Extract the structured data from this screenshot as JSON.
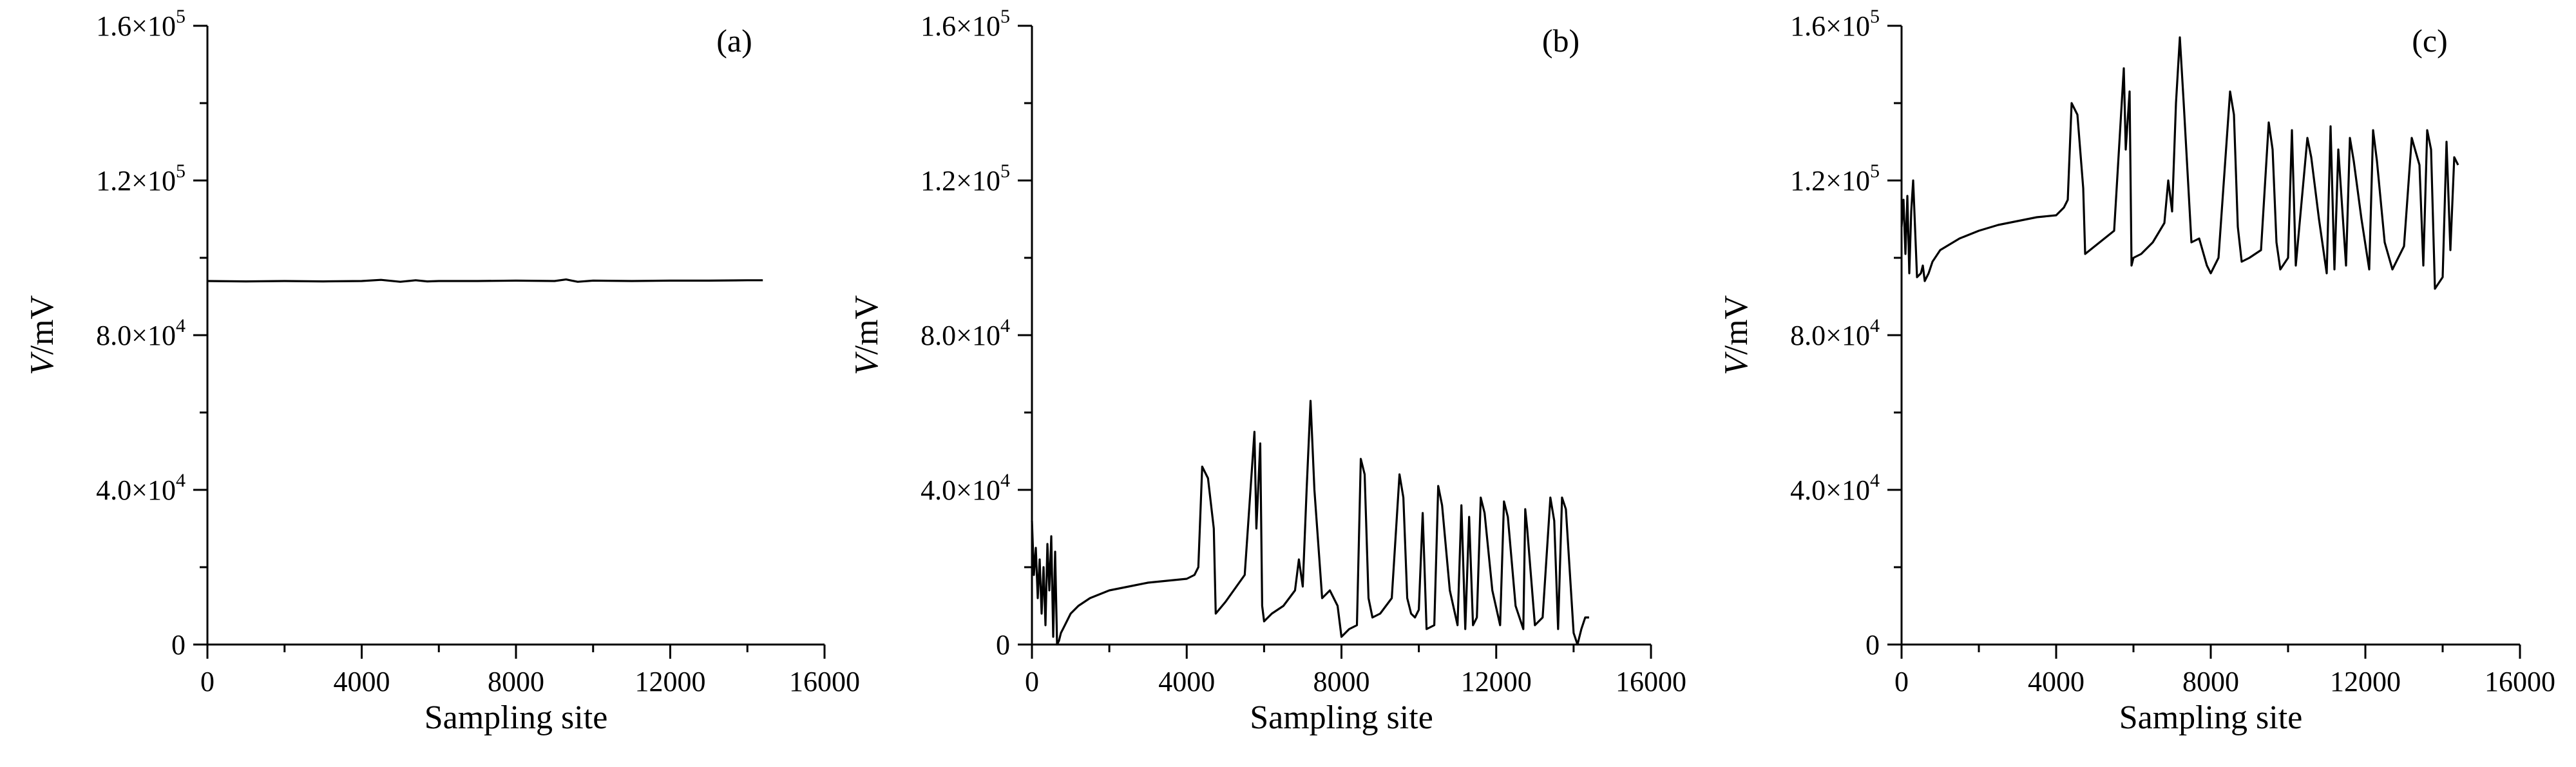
{
  "chart_data": [
    {
      "type": "line",
      "label": "(a)",
      "xlabel": "Sampling site",
      "ylabel_var": "V",
      "ylabel_unit": "/mV",
      "xlim": [
        0,
        16000
      ],
      "ylim": [
        0,
        160000
      ],
      "xticks": [
        0,
        4000,
        8000,
        12000,
        16000
      ],
      "xtick_labels": [
        "0",
        "4000",
        "8000",
        "12000",
        "16000"
      ],
      "yticks": [
        0,
        40000,
        80000,
        120000,
        160000
      ],
      "ytick_labels": [
        {
          "mant": "0",
          "exp": ""
        },
        {
          "mant": "4.0×10",
          "exp": "4"
        },
        {
          "mant": "8.0×10",
          "exp": "4"
        },
        {
          "mant": "1.2×10",
          "exp": "5"
        },
        {
          "mant": "1.6×10",
          "exp": "5"
        }
      ],
      "series": [
        {
          "x": [
            0,
            1000,
            2000,
            3000,
            4000,
            4500,
            5000,
            5400,
            5700,
            6000,
            7000,
            8000,
            9000,
            9300,
            9600,
            10000,
            11000,
            12000,
            13000,
            14000,
            14400
          ],
          "y": [
            94000,
            93900,
            94000,
            93900,
            94000,
            94300,
            93800,
            94200,
            93900,
            94000,
            94000,
            94100,
            94000,
            94400,
            93800,
            94100,
            94000,
            94100,
            94100,
            94200,
            94200
          ]
        }
      ]
    },
    {
      "type": "line",
      "label": "(b)",
      "xlabel": "Sampling site",
      "ylabel_var": "V",
      "ylabel_unit": "/mV",
      "xlim": [
        0,
        16000
      ],
      "ylim": [
        0,
        160000
      ],
      "xticks": [
        0,
        4000,
        8000,
        12000,
        16000
      ],
      "xtick_labels": [
        "0",
        "4000",
        "8000",
        "12000",
        "16000"
      ],
      "yticks": [
        0,
        40000,
        80000,
        120000,
        160000
      ],
      "ytick_labels": [
        {
          "mant": "0",
          "exp": ""
        },
        {
          "mant": "4.0×10",
          "exp": "4"
        },
        {
          "mant": "8.0×10",
          "exp": "4"
        },
        {
          "mant": "1.2×10",
          "exp": "5"
        },
        {
          "mant": "1.6×10",
          "exp": "5"
        }
      ],
      "series": [
        {
          "x": [
            0,
            50,
            100,
            150,
            200,
            250,
            300,
            350,
            400,
            450,
            500,
            550,
            600,
            650,
            700,
            750,
            800,
            900,
            1000,
            1200,
            1500,
            2000,
            2500,
            3000,
            3500,
            4000,
            4200,
            4300,
            4400,
            4550,
            4700,
            4750,
            5000,
            5500,
            5750,
            5800,
            5900,
            5950,
            6000,
            6200,
            6500,
            6800,
            6900,
            7000,
            7100,
            7200,
            7300,
            7500,
            7700,
            7900,
            8000,
            8100,
            8200,
            8400,
            8500,
            8600,
            8700,
            8800,
            9000,
            9300,
            9500,
            9600,
            9700,
            9800,
            9900,
            10000,
            10100,
            10200,
            10400,
            10500,
            10600,
            10800,
            11000,
            11100,
            11200,
            11300,
            11400,
            11500,
            11600,
            11700,
            11900,
            12100,
            12200,
            12300,
            12500,
            12700,
            12750,
            12800,
            13000,
            13200,
            13400,
            13500,
            13600,
            13700,
            13800,
            14000,
            14100,
            14200,
            14300,
            14400
          ],
          "y": [
            32000,
            18000,
            25000,
            12000,
            22000,
            8000,
            20000,
            5000,
            26000,
            14000,
            28000,
            2000,
            24000,
            0,
            1000,
            3000,
            4000,
            6000,
            8000,
            10000,
            12000,
            14000,
            15000,
            16000,
            16500,
            17000,
            18000,
            20000,
            46000,
            43000,
            30000,
            8000,
            11000,
            18000,
            55000,
            30000,
            52000,
            10000,
            6000,
            8000,
            10000,
            14000,
            22000,
            15000,
            40000,
            63000,
            40000,
            12000,
            14000,
            10000,
            2000,
            3000,
            4000,
            5000,
            48000,
            44000,
            12000,
            7000,
            8000,
            12000,
            44000,
            38000,
            12000,
            8000,
            7000,
            9000,
            34000,
            4000,
            5000,
            41000,
            36000,
            14000,
            5000,
            36000,
            4000,
            33000,
            5000,
            7000,
            38000,
            34000,
            14000,
            5000,
            37000,
            33000,
            10000,
            4000,
            35000,
            30000,
            5000,
            7000,
            38000,
            32000,
            4000,
            38000,
            35000,
            3000,
            0,
            4000,
            7000,
            7000
          ]
        }
      ]
    },
    {
      "type": "line",
      "label": "(c)",
      "xlabel": "Sampling site",
      "ylabel_var": "V",
      "ylabel_unit": "/mV",
      "xlim": [
        0,
        16000
      ],
      "ylim": [
        0,
        160000
      ],
      "xticks": [
        0,
        4000,
        8000,
        12000,
        16000
      ],
      "xtick_labels": [
        "0",
        "4000",
        "8000",
        "12000",
        "16000"
      ],
      "yticks": [
        0,
        40000,
        80000,
        120000,
        160000
      ],
      "ytick_labels": [
        {
          "mant": "0",
          "exp": ""
        },
        {
          "mant": "4.0×10",
          "exp": "4"
        },
        {
          "mant": "8.0×10",
          "exp": "4"
        },
        {
          "mant": "1.2×10",
          "exp": "5"
        },
        {
          "mant": "1.6×10",
          "exp": "5"
        }
      ],
      "series": [
        {
          "x": [
            0,
            50,
            100,
            150,
            200,
            250,
            300,
            400,
            500,
            550,
            600,
            700,
            800,
            1000,
            1500,
            2000,
            2500,
            3000,
            3500,
            4000,
            4200,
            4300,
            4400,
            4550,
            4700,
            4750,
            5000,
            5500,
            5750,
            5800,
            5900,
            5950,
            6000,
            6200,
            6500,
            6800,
            6900,
            7000,
            7100,
            7200,
            7300,
            7500,
            7700,
            7900,
            8000,
            8200,
            8500,
            8600,
            8700,
            8800,
            9000,
            9300,
            9500,
            9600,
            9700,
            9800,
            10000,
            10100,
            10200,
            10500,
            10600,
            10800,
            11000,
            11100,
            11200,
            11300,
            11500,
            11600,
            11700,
            11900,
            12100,
            12200,
            12300,
            12500,
            12700,
            12800,
            13000,
            13200,
            13400,
            13500,
            13600,
            13700,
            13800,
            14000,
            14100,
            14200,
            14300,
            14400
          ],
          "y": [
            108000,
            115000,
            101000,
            116000,
            96000,
            112000,
            120000,
            95000,
            96000,
            98000,
            94000,
            96000,
            99000,
            102000,
            105000,
            107000,
            108500,
            109500,
            110500,
            111000,
            113000,
            115000,
            140000,
            137000,
            118000,
            101000,
            103000,
            107000,
            149000,
            128000,
            143000,
            98000,
            100000,
            101000,
            104000,
            109000,
            120000,
            112000,
            140000,
            157000,
            140000,
            104000,
            105000,
            98000,
            96000,
            100000,
            143000,
            137000,
            108000,
            99000,
            100000,
            102000,
            135000,
            128000,
            104000,
            97000,
            100000,
            133000,
            98000,
            131000,
            126000,
            110000,
            96000,
            134000,
            97000,
            128000,
            98000,
            131000,
            125000,
            110000,
            97000,
            133000,
            125000,
            104000,
            97000,
            99000,
            103000,
            131000,
            124000,
            98000,
            133000,
            128000,
            92000,
            95000,
            130000,
            102000,
            126000,
            124000
          ]
        }
      ]
    }
  ]
}
